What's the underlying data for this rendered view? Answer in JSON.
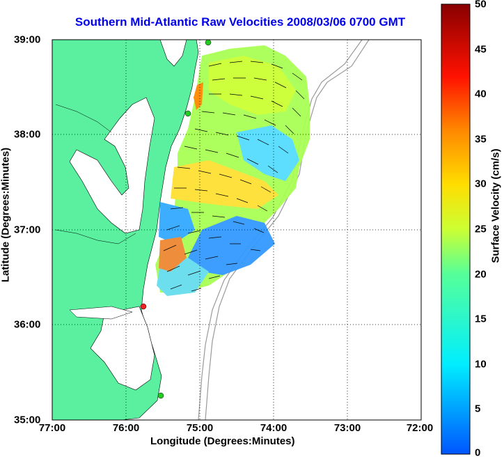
{
  "title": "Southern Mid-Atlantic Raw Velocities 2008/03/06 0700 GMT",
  "xlabel": "Longitude (Degrees:Minutes)",
  "ylabel": "Latitude (Degrees:Minutes)",
  "x_ticks": [
    "77:00",
    "76:00",
    "75:00",
    "74:00",
    "73:00",
    "72:00"
  ],
  "y_ticks": [
    "39:00",
    "38:00",
    "37:00",
    "36:00",
    "35:00"
  ],
  "colorbar": {
    "label": "Surface Velocity (cm/s)",
    "ticks": [
      "50",
      "45",
      "40",
      "35",
      "30",
      "25",
      "20",
      "15",
      "10",
      "5",
      "0"
    ],
    "range": [
      0,
      50
    ]
  },
  "map": {
    "lon_range": [
      -77,
      -72
    ],
    "lat_range": [
      35,
      39
    ],
    "grid": true,
    "land_color": "#5af0a0",
    "shelf_contour_color": "#999999",
    "station_markers": [
      {
        "lon": -75.1,
        "lat": 39.0,
        "color": "#22cc22"
      },
      {
        "lon": -75.15,
        "lat": 38.2,
        "color": "#22cc22"
      },
      {
        "lon": -75.75,
        "lat": 36.18,
        "color": "#ee2222"
      },
      {
        "lon": -75.5,
        "lat": 35.26,
        "color": "#22cc22"
      }
    ]
  }
}
